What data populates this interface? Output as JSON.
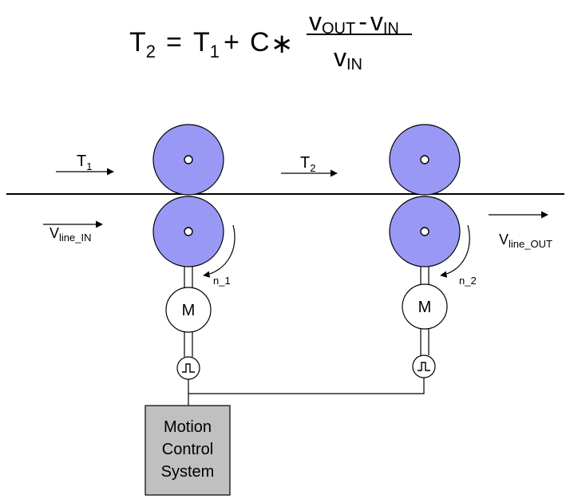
{
  "formula": {
    "lhs_symbol": "T",
    "lhs_sub": "2",
    "equals": "=",
    "t1_symbol": "T",
    "t1_sub": "1",
    "plus": "+",
    "constant": "C",
    "times": "∗",
    "num_v1": "v",
    "num_v1_sub": "OUT",
    "minus": "-",
    "num_v2": "v",
    "num_v2_sub": "IN",
    "den_v": "v",
    "den_v_sub": "IN"
  },
  "labels": {
    "t1_symbol": "T",
    "t1_sub": "1",
    "t2_symbol": "T",
    "t2_sub": "2",
    "v_in_symbol": "V",
    "v_in_sub": "line_IN",
    "v_out_symbol": "V",
    "v_out_sub": "line_OUT",
    "n1": "n_1",
    "n2": "n_2",
    "motor1": "M",
    "motor2": "M"
  },
  "control_box": {
    "line1": "Motion",
    "line2": "Control",
    "line3": "System"
  },
  "colors": {
    "roller": "#9999f5",
    "control_box": "#c0c0c0"
  }
}
